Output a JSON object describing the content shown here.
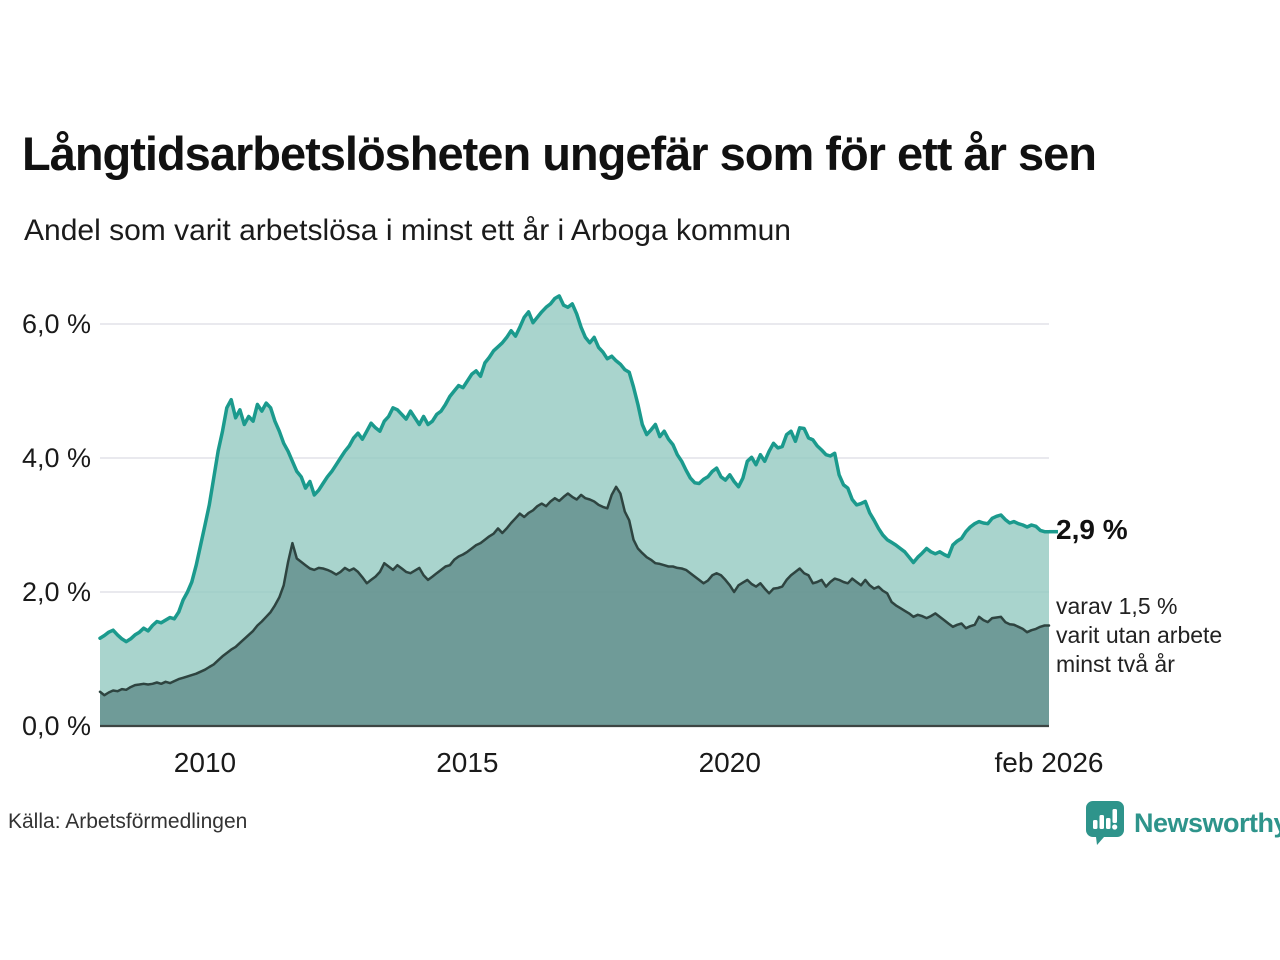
{
  "header": {
    "title": "Långtidsarbetslösheten ungefär som för ett år sen",
    "subtitle": "Andel som varit arbetslösa i minst ett år i Arboga kommun"
  },
  "annotations": {
    "latest_value": "2,9 %",
    "secondary_note_lines": [
      "varav 1,5 %",
      "varit utan arbete",
      "minst två år"
    ]
  },
  "footer": {
    "source": "Källa: Arbetsförmedlingen",
    "brand": "Newsworthy",
    "brand_icon": "newsworthy-speech-bubble-bar-chart-icon"
  },
  "colors": {
    "accent_teal_line": "#1b9a8d",
    "light_area_fill": "#93c9c0",
    "dark_area_line": "#2e4440",
    "dark_area_fill": "#65918e",
    "grid": "#e2e2e8",
    "baseline": "#3d4543",
    "brand_teal": "#2e948b",
    "text_dark": "#111111"
  },
  "chart_data": {
    "type": "area",
    "title": "Långtidsarbetslösheten ungefär som för ett år sen",
    "subtitle": "Andel som varit arbetslösa i minst ett år i Arboga kommun",
    "unit": "%",
    "xlim": [
      2008.0,
      2026.17
    ],
    "ylim": [
      0,
      6.5
    ],
    "grid": "horizontal",
    "legend_position": "none",
    "x_ticks": [
      {
        "label": "2010",
        "year": 2010.0
      },
      {
        "label": "2015",
        "year": 2015.0
      },
      {
        "label": "2020",
        "year": 2020.0
      },
      {
        "label": "feb 2026",
        "year": 2026.083
      }
    ],
    "y_ticks": [
      {
        "label": "0,0 %",
        "value": 0
      },
      {
        "label": "2,0 %",
        "value": 2
      },
      {
        "label": "4,0 %",
        "value": 4
      },
      {
        "label": "6,0 %",
        "value": 6
      }
    ],
    "series": [
      {
        "name": "Andel arbetslösa minst ett år",
        "line_color": "#1b9a8d",
        "line_width": 3.5,
        "fill_color": "#93c9c0",
        "fill_opacity": 0.8,
        "start_year": 2008.0,
        "step_years": 0.083333,
        "latest_label": "2,9 %",
        "values": [
          1.31,
          1.35,
          1.4,
          1.43,
          1.36,
          1.3,
          1.26,
          1.3,
          1.36,
          1.4,
          1.46,
          1.42,
          1.5,
          1.56,
          1.54,
          1.58,
          1.62,
          1.6,
          1.7,
          1.88,
          2.0,
          2.15,
          2.4,
          2.7,
          3.0,
          3.3,
          3.7,
          4.1,
          4.4,
          4.75,
          4.87,
          4.6,
          4.72,
          4.5,
          4.62,
          4.55,
          4.8,
          4.7,
          4.82,
          4.75,
          4.55,
          4.4,
          4.22,
          4.1,
          3.95,
          3.8,
          3.72,
          3.55,
          3.65,
          3.45,
          3.52,
          3.62,
          3.72,
          3.8,
          3.9,
          4.0,
          4.1,
          4.18,
          4.3,
          4.37,
          4.28,
          4.4,
          4.52,
          4.45,
          4.4,
          4.55,
          4.62,
          4.75,
          4.72,
          4.65,
          4.58,
          4.7,
          4.6,
          4.5,
          4.62,
          4.5,
          4.55,
          4.65,
          4.7,
          4.8,
          4.92,
          5.0,
          5.08,
          5.05,
          5.15,
          5.25,
          5.3,
          5.22,
          5.42,
          5.5,
          5.6,
          5.66,
          5.72,
          5.8,
          5.9,
          5.82,
          5.95,
          6.1,
          6.18,
          6.02,
          6.1,
          6.18,
          6.25,
          6.3,
          6.38,
          6.42,
          6.28,
          6.25,
          6.3,
          6.15,
          5.95,
          5.8,
          5.72,
          5.8,
          5.65,
          5.58,
          5.48,
          5.52,
          5.45,
          5.4,
          5.32,
          5.28,
          5.06,
          4.8,
          4.5,
          4.35,
          4.42,
          4.5,
          4.32,
          4.4,
          4.28,
          4.2,
          4.05,
          3.95,
          3.82,
          3.7,
          3.63,
          3.62,
          3.68,
          3.72,
          3.8,
          3.85,
          3.72,
          3.67,
          3.75,
          3.65,
          3.57,
          3.7,
          3.95,
          4.01,
          3.9,
          4.05,
          3.95,
          4.1,
          4.22,
          4.15,
          4.17,
          4.35,
          4.4,
          4.25,
          4.45,
          4.44,
          4.3,
          4.27,
          4.18,
          4.12,
          4.05,
          4.03,
          4.07,
          3.75,
          3.6,
          3.55,
          3.38,
          3.3,
          3.32,
          3.35,
          3.18,
          3.07,
          2.95,
          2.85,
          2.78,
          2.74,
          2.7,
          2.65,
          2.6,
          2.52,
          2.44,
          2.52,
          2.58,
          2.65,
          2.6,
          2.57,
          2.6,
          2.56,
          2.53,
          2.7,
          2.76,
          2.8,
          2.9,
          2.97,
          3.02,
          3.05,
          3.03,
          3.02,
          3.1,
          3.13,
          3.15,
          3.08,
          3.03,
          3.05,
          3.02,
          3.0,
          2.97,
          3.0,
          2.98,
          2.92,
          2.9,
          2.9
        ]
      },
      {
        "name": "varav utan arbete minst två år",
        "line_color": "#2e4440",
        "line_width": 2.5,
        "fill_color": "#65918e",
        "fill_opacity": 0.85,
        "start_year": 2008.0,
        "step_years": 0.083333,
        "latest_label": "1,5 %",
        "values": [
          0.51,
          0.46,
          0.5,
          0.53,
          0.52,
          0.55,
          0.54,
          0.58,
          0.61,
          0.62,
          0.63,
          0.62,
          0.63,
          0.65,
          0.63,
          0.66,
          0.64,
          0.67,
          0.7,
          0.72,
          0.74,
          0.76,
          0.78,
          0.81,
          0.84,
          0.88,
          0.92,
          0.98,
          1.04,
          1.09,
          1.14,
          1.18,
          1.24,
          1.3,
          1.36,
          1.42,
          1.5,
          1.56,
          1.63,
          1.7,
          1.8,
          1.92,
          2.1,
          2.45,
          2.73,
          2.5,
          2.45,
          2.4,
          2.35,
          2.33,
          2.36,
          2.35,
          2.33,
          2.3,
          2.26,
          2.3,
          2.36,
          2.32,
          2.35,
          2.3,
          2.22,
          2.13,
          2.18,
          2.23,
          2.3,
          2.43,
          2.38,
          2.33,
          2.4,
          2.35,
          2.3,
          2.28,
          2.32,
          2.36,
          2.25,
          2.18,
          2.23,
          2.28,
          2.33,
          2.38,
          2.4,
          2.48,
          2.53,
          2.56,
          2.6,
          2.65,
          2.7,
          2.73,
          2.78,
          2.83,
          2.87,
          2.95,
          2.88,
          2.95,
          3.03,
          3.1,
          3.17,
          3.12,
          3.18,
          3.22,
          3.28,
          3.32,
          3.28,
          3.35,
          3.4,
          3.36,
          3.42,
          3.47,
          3.42,
          3.38,
          3.45,
          3.4,
          3.38,
          3.35,
          3.3,
          3.27,
          3.25,
          3.45,
          3.57,
          3.47,
          3.2,
          3.07,
          2.78,
          2.65,
          2.58,
          2.52,
          2.48,
          2.43,
          2.42,
          2.4,
          2.38,
          2.38,
          2.36,
          2.35,
          2.33,
          2.28,
          2.23,
          2.18,
          2.13,
          2.17,
          2.25,
          2.28,
          2.25,
          2.18,
          2.1,
          2.0,
          2.1,
          2.14,
          2.18,
          2.12,
          2.08,
          2.13,
          2.05,
          1.98,
          2.05,
          2.06,
          2.08,
          2.18,
          2.25,
          2.3,
          2.35,
          2.28,
          2.25,
          2.13,
          2.15,
          2.18,
          2.08,
          2.15,
          2.2,
          2.18,
          2.15,
          2.13,
          2.2,
          2.15,
          2.1,
          2.18,
          2.1,
          2.05,
          2.08,
          2.02,
          1.98,
          1.85,
          1.8,
          1.76,
          1.72,
          1.68,
          1.63,
          1.66,
          1.64,
          1.61,
          1.64,
          1.68,
          1.63,
          1.58,
          1.53,
          1.48,
          1.51,
          1.53,
          1.46,
          1.49,
          1.51,
          1.63,
          1.58,
          1.55,
          1.61,
          1.62,
          1.63,
          1.55,
          1.52,
          1.51,
          1.48,
          1.45,
          1.4,
          1.43,
          1.45,
          1.48,
          1.5,
          1.5
        ]
      }
    ]
  }
}
